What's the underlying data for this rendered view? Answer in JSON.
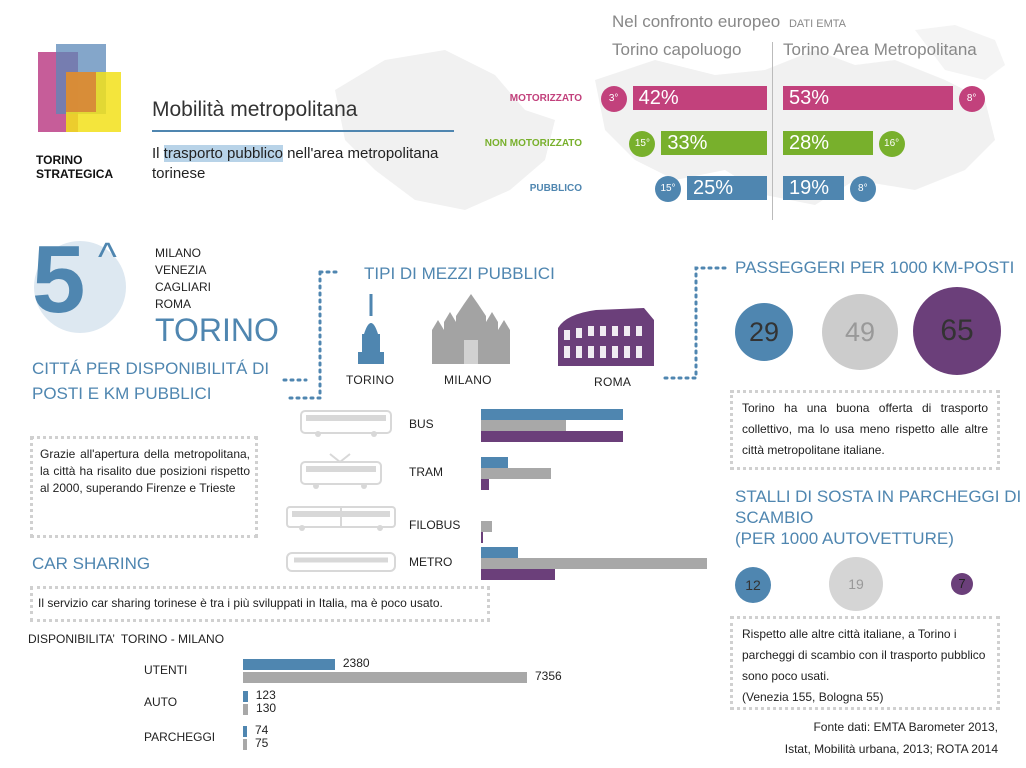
{
  "colors": {
    "blue": "#4f86b0",
    "magenta": "#c2417c",
    "green": "#78b02c",
    "purple": "#6b3f7a",
    "gray": "#a8a8a8",
    "lightgray": "#cccccc"
  },
  "logo": {
    "line1": "TORINO",
    "line2": "STRATEGICA"
  },
  "header": {
    "title": "Mobilità metropolitana",
    "subtitle_highlight": "trasporto pubblico",
    "subtitle_pre": "Il ",
    "subtitle_post": " nell'area metropolitana",
    "subtitle_line2": "torinese"
  },
  "europe": {
    "heading": "Nel confronto europeo",
    "source_tag": "DATI EMTA",
    "col1": "Torino capoluogo",
    "col2": "Torino Area Metropolitana",
    "rows": [
      {
        "label": "MOTORIZZATO",
        "city_pct": "42%",
        "city_value": 42,
        "city_rank": "3°",
        "metro_pct": "53%",
        "metro_value": 53,
        "metro_rank": "8°"
      },
      {
        "label": "NON MOTORIZZATO",
        "city_pct": "33%",
        "city_value": 33,
        "city_rank": "15°",
        "metro_pct": "28%",
        "metro_value": 28,
        "metro_rank": "16°"
      },
      {
        "label": "PUBBLICO",
        "city_pct": "25%",
        "city_value": 25,
        "city_rank": "15°",
        "metro_pct": "19%",
        "metro_value": 19,
        "metro_rank": "8°"
      }
    ]
  },
  "ranking": {
    "big_number": "5",
    "caret": "^",
    "cities": [
      "MILANO",
      "VENEZIA",
      "CAGLIARI",
      "ROMA"
    ],
    "torino": "TORINO",
    "caption_line1": "CITTÁ PER DISPONIBILITÁ DI",
    "caption_line2": "POSTI E KM PUBBLICI",
    "note": "Grazie all'apertura della metropolitana, la città ha risalito due posizioni rispetto al 2000, superando Firenze e Trieste"
  },
  "transport_types": {
    "heading": "TIPI DI MEZZI PUBBLICI",
    "cities": [
      "TORINO",
      "MILANO",
      "ROMA"
    ],
    "chart_data": {
      "type": "bar",
      "categories": [
        "BUS",
        "TRAM",
        "FILOBUS",
        "METRO"
      ],
      "series": [
        {
          "name": "TORINO",
          "values": [
            142,
            27,
            0,
            37
          ]
        },
        {
          "name": "MILANO",
          "values": [
            85,
            70,
            11,
            226
          ]
        },
        {
          "name": "ROMA",
          "values": [
            142,
            8,
            2,
            74
          ]
        }
      ]
    }
  },
  "passengers": {
    "heading": "PASSEGGERI PER 1000 KM-POSTI",
    "values": [
      "29",
      "49",
      "65"
    ],
    "note": "Torino ha una buona offerta di trasporto collettivo, ma lo usa meno rispetto alle altre città metropolitane italiane."
  },
  "parking": {
    "heading_line1": "STALLI DI SOSTA IN PARCHEGGI DI",
    "heading_line2": "SCAMBIO",
    "heading_line3": "(PER 1000 AUTOVETTURE)",
    "values": [
      "12",
      "19",
      "7"
    ],
    "note_line1": "Rispetto alle altre città italiane, a Torino i parcheggi di scambio con il trasporto pubblico sono poco usati.",
    "note_line2": "(Venezia 155, Bologna 55)"
  },
  "carsharing": {
    "heading": "CAR SHARING",
    "note": "Il servizio car sharing torinese è tra i più sviluppati in Italia, ma è poco usato.",
    "chart_title": "DISPONIBILITA’  TORINO - MILANO",
    "chart_data": {
      "type": "bar",
      "categories": [
        "UTENTI",
        "AUTO",
        "PARCHEGGI"
      ],
      "series": [
        {
          "name": "TORINO",
          "values": [
            2380,
            123,
            74
          ]
        },
        {
          "name": "MILANO",
          "values": [
            7356,
            130,
            75
          ]
        }
      ]
    }
  },
  "source": {
    "line1": "Fonte dati: EMTA Barometer 2013,",
    "line2": "Istat, Mobilità urbana, 2013; ROTA 2014"
  }
}
